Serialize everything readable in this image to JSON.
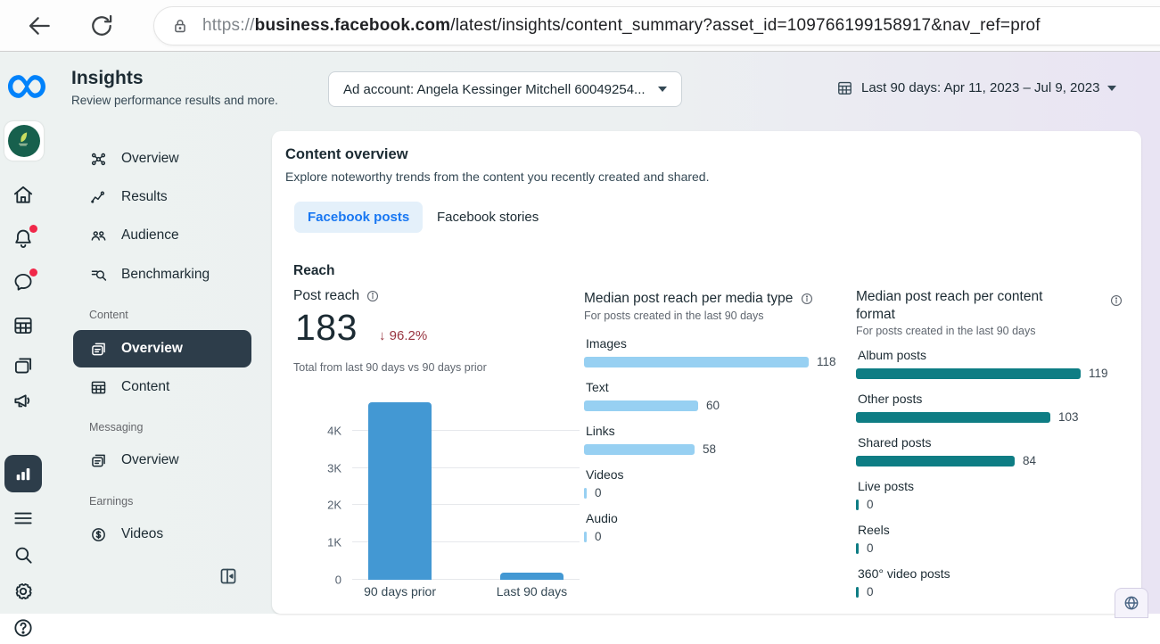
{
  "browser": {
    "url_scheme": "https://",
    "url_host": "business.facebook.com",
    "url_path": "/latest/insights/content_summary?asset_id=109766199158917&nav_ref=prof"
  },
  "header": {
    "title": "Insights",
    "subtitle": "Review performance results and more.",
    "ad_account": "Ad account: Angela Kessinger Mitchell 60049254...",
    "date_range": "Last 90 days: Apr 11, 2023 – Jul 9, 2023"
  },
  "sidebar": {
    "top_items": [
      {
        "label": "Overview"
      },
      {
        "label": "Results"
      },
      {
        "label": "Audience"
      },
      {
        "label": "Benchmarking"
      }
    ],
    "content_section": {
      "label": "Content",
      "items": [
        {
          "label": "Overview",
          "active": true
        },
        {
          "label": "Content",
          "active": false
        }
      ]
    },
    "messaging_section": {
      "label": "Messaging",
      "items": [
        {
          "label": "Overview",
          "active": false
        }
      ]
    },
    "earnings_section": {
      "label": "Earnings",
      "items": [
        {
          "label": "Videos",
          "active": false
        }
      ]
    }
  },
  "main": {
    "title": "Content overview",
    "subtitle": "Explore noteworthy trends from the content you recently created and shared.",
    "tabs": [
      {
        "label": "Facebook posts",
        "active": true
      },
      {
        "label": "Facebook stories",
        "active": false
      }
    ],
    "reach_heading": "Reach",
    "post_reach": {
      "label": "Post reach",
      "value": "183",
      "change_direction": "down",
      "change_arrow": "↓",
      "change": "96.2%",
      "caption": "Total from last 90 days vs 90 days prior"
    }
  },
  "colors": {
    "accent_blue": "#1877f2",
    "bar_blue": "#4398d3",
    "bar_light_blue": "#97d0f2",
    "bar_teal": "#0e7d84",
    "negative_red": "#98333f",
    "badge_red": "#f02849",
    "selected_dark": "#2d3d4a"
  },
  "chart_data": [
    {
      "type": "bar",
      "title": "Post reach",
      "categories": [
        "90 days prior",
        "Last 90 days"
      ],
      "values": [
        4760,
        183
      ],
      "ylim": [
        0,
        4900
      ],
      "yticks": [
        {
          "value": 0,
          "label": "0"
        },
        {
          "value": 1000,
          "label": "1K"
        },
        {
          "value": 2000,
          "label": "2K"
        },
        {
          "value": 3000,
          "label": "3K"
        },
        {
          "value": 4000,
          "label": "4K"
        }
      ],
      "grid": true,
      "legend": "none",
      "color": "#4398d3"
    },
    {
      "type": "bar",
      "orientation": "horizontal",
      "title": "Median post reach per media type",
      "subtitle": "For posts created in the last 90 days",
      "categories": [
        "Images",
        "Text",
        "Links",
        "Videos",
        "Audio"
      ],
      "values": [
        118,
        60,
        58,
        0,
        0
      ],
      "color": "#97d0f2"
    },
    {
      "type": "bar",
      "orientation": "horizontal",
      "title": "Median post reach per content format",
      "subtitle": "For posts created in the last 90 days",
      "categories": [
        "Album posts",
        "Other posts",
        "Shared posts",
        "Live posts",
        "Reels",
        "360° video posts"
      ],
      "values": [
        119,
        103,
        84,
        0,
        0,
        0
      ],
      "color": "#0e7d84"
    }
  ]
}
